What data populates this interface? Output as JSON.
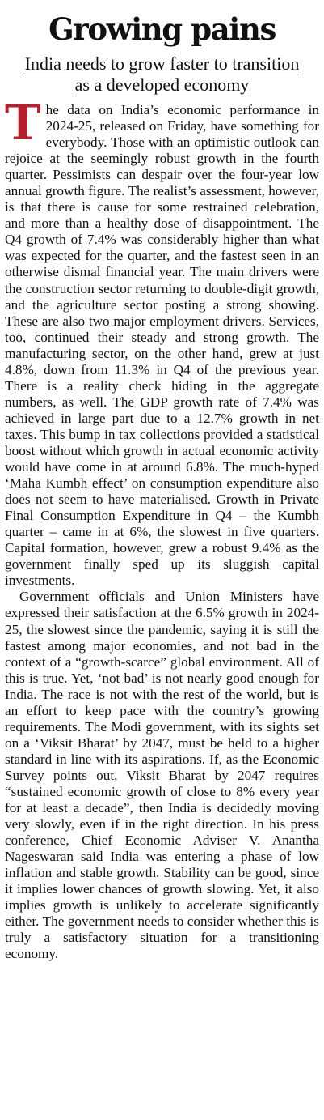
{
  "article": {
    "headline": "Growing pains",
    "subheadline_line1": "India needs to grow faster to transition",
    "subheadline_line2": "as a developed economy",
    "drop_cap": "T",
    "paragraph1_rest": "he data on India’s economic performance in 2024-25, released on Friday, have something for everybody. Those with an optimistic outlook can rejoice at the seemingly robust growth in the fourth quarter. Pessimists can despair over the four-year low annual growth figure. The realist’s assessment, however, is that there is cause for some restrained celebration, and more than a healthy dose of disappointment. The Q4 growth of 7.4% was considerably higher than what was expected for the quarter, and the fastest seen in an otherwise dismal financial year. The main drivers were the construction sector returning to double-digit growth, and the agriculture sector posting a strong showing. These are also two major employment drivers. Services, too, continued their steady and strong growth. The manufacturing sector, on the other hand, grew at just 4.8%, down from 11.3% in Q4 of the previous year. There is a reality check hiding in the aggregate numbers, as well. The GDP growth rate of 7.4% was achieved in large part due to a 12.7% growth in net taxes. This bump in tax collections provided a statistical boost without which growth in actual economic activity would have come in at around 6.8%. The much-hyped ‘Maha Kumbh effect’ on consumption expenditure also does not seem to have materialised. Growth in Private Final Consumption Expenditure in Q4 – the Kumbh quarter – came in at 6%, the slowest in five quarters. Capital formation, however, grew a robust 9.4% as the government finally sped up its sluggish capital investments.",
    "paragraph2": "Government officials and Union Ministers have expressed their satisfaction at the 6.5% growth in 2024-25, the slowest since the pandemic, saying it is still the fastest among major economies, and not bad in the context of a “growth-scarce” global environment. All of this is true. Yet, ‘not bad’ is not nearly good enough for India. The race is not with the rest of the world, but is an effort to keep pace with the country’s growing requirements. The Modi government, with its sights set on a ‘Viksit Bharat’ by 2047, must be held to a higher standard in line with its aspirations. If, as the Economic Survey points out, Viksit Bharat by 2047 requires “sustained economic growth of close to 8% every year for at least a decade”, then India is decidedly moving very slowly, even if in the right direction. In his press conference, Chief Economic Adviser V. Anantha Nageswaran said India was entering a phase of low inflation and stable growth. Stability can be good, since it implies lower chances of growth slowing. Yet, it also implies growth is unlikely to accelerate significantly either. The government needs to consider whether this is truly a satisfactory situation for a transitioning economy."
  },
  "colors": {
    "drop_cap": "#b5202e",
    "text": "#111111",
    "background": "#ffffff"
  }
}
